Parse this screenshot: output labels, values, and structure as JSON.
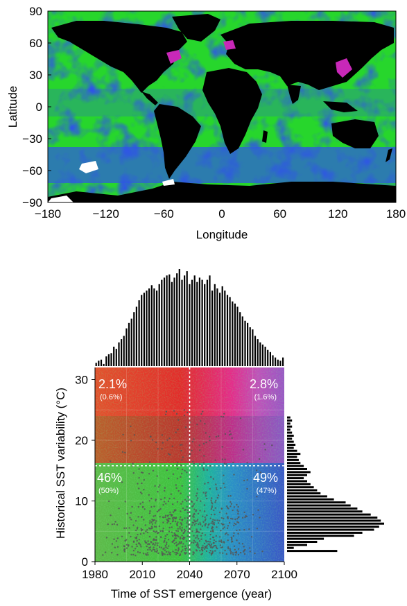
{
  "map": {
    "ylabel": "Latitude",
    "xlabel": "Longitude",
    "yticks": [
      "90",
      "60",
      "30",
      "0",
      "−30",
      "−60",
      "−90"
    ],
    "xticks": [
      "−180",
      "−120",
      "−60",
      "0",
      "60",
      "120",
      "180"
    ],
    "colors": {
      "ocean_green": "#27d62c",
      "ocean_blue": "#2f55e6",
      "land": "#000000",
      "ice": "#ffffff",
      "hotspot_magenta": "#c828b8"
    }
  },
  "chart_data": [
    {
      "type": "heatmap",
      "title": "",
      "xlabel": "Longitude",
      "ylabel": "Latitude",
      "xlim": [
        -180,
        180
      ],
      "ylim": [
        -90,
        90
      ],
      "xticks": [
        -180,
        -120,
        -60,
        0,
        60,
        120,
        180
      ],
      "yticks": [
        90,
        60,
        30,
        0,
        -30,
        -60,
        -90
      ]
    },
    {
      "type": "scatter",
      "title": "",
      "xlabel": "Time of SST emergence (year)",
      "ylabel": "Historical SST variability (°C)",
      "xlim": [
        1980,
        2100
      ],
      "ylim": [
        0,
        32
      ],
      "xticks": [
        1980,
        2010,
        2040,
        2070,
        2100
      ],
      "yticks": [
        0,
        10,
        20,
        30
      ],
      "divider_x": 2040,
      "divider_y": 15.8,
      "quadrants": [
        {
          "pos": "top-left",
          "pct": "2.1%",
          "sub": "(0.6%)"
        },
        {
          "pos": "top-right",
          "pct": "2.8%",
          "sub": "(1.6%)"
        },
        {
          "pos": "bottom-left",
          "pct": "46%",
          "sub": "(50%)"
        },
        {
          "pos": "bottom-right",
          "pct": "49%",
          "sub": "(47%)"
        }
      ],
      "colors": {
        "top_left": "#e82828",
        "top_right": "#a651c7",
        "bottom_left": "#3cb83c",
        "bottom_right": "#3a55c8",
        "points": "#555555"
      }
    },
    {
      "type": "bar",
      "title": "",
      "xlabel": "Time of SST emergence (year)",
      "ylabel": "",
      "xlim": [
        1980,
        2100
      ],
      "bin_start": 1980,
      "bin_width": 1.6,
      "values": [
        3,
        5,
        6,
        2,
        9,
        11,
        12,
        18,
        16,
        22,
        25,
        28,
        35,
        40,
        44,
        50,
        55,
        61,
        66,
        68,
        70,
        72,
        75,
        72,
        70,
        76,
        80,
        82,
        84,
        85,
        78,
        82,
        86,
        90,
        80,
        84,
        88,
        76,
        80,
        84,
        78,
        82,
        80,
        76,
        80,
        84,
        70,
        76,
        72,
        68,
        74,
        70,
        66,
        64,
        60,
        58,
        55,
        50,
        46,
        42,
        40,
        36,
        34,
        28,
        25,
        22,
        20,
        18,
        15,
        13,
        10,
        8,
        6,
        5,
        8
      ]
    },
    {
      "type": "bar",
      "title": "",
      "xlabel": "",
      "ylabel": "Historical SST variability (°C)",
      "ylim": [
        0,
        32
      ],
      "bin_start": 1.5,
      "bin_width": 0.5,
      "values": [
        30,
        4,
        12,
        18,
        22,
        40,
        45,
        52,
        55,
        58,
        56,
        54,
        50,
        45,
        42,
        38,
        35,
        28,
        24,
        20,
        18,
        16,
        14,
        12,
        10,
        12,
        14,
        12,
        10,
        8,
        7,
        6,
        8,
        6,
        4,
        5,
        4,
        3,
        4,
        3,
        2,
        3,
        2,
        3,
        2
      ]
    }
  ]
}
